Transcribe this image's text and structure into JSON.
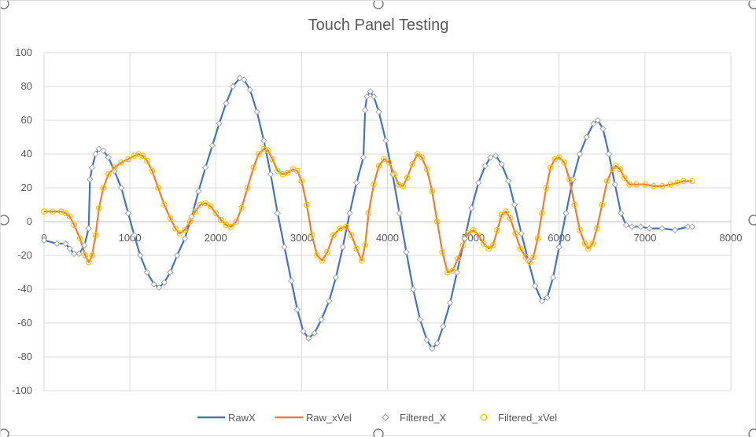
{
  "chart_data": {
    "type": "line",
    "title": "Touch Panel Testing",
    "xlabel": "",
    "ylabel": "",
    "xlim": [
      0,
      8000
    ],
    "ylim": [
      -100,
      100
    ],
    "x_ticks": [
      0,
      1000,
      2000,
      3000,
      4000,
      5000,
      6000,
      7000,
      8000
    ],
    "y_ticks": [
      100,
      80,
      60,
      40,
      20,
      0,
      -20,
      -40,
      -60,
      -80,
      -100
    ],
    "grid": true,
    "legend_position": "bottom",
    "series": [
      {
        "name": "RawX",
        "style": "line",
        "color": "#4472C4",
        "points": [
          [
            0,
            -11
          ],
          [
            150,
            -13
          ],
          [
            250,
            -13
          ],
          [
            300,
            -16
          ],
          [
            350,
            -19
          ],
          [
            410,
            -19
          ],
          [
            470,
            -14
          ],
          [
            520,
            -4
          ],
          [
            535,
            25
          ],
          [
            560,
            32
          ],
          [
            600,
            40
          ],
          [
            640,
            43
          ],
          [
            690,
            42
          ],
          [
            750,
            38
          ],
          [
            820,
            30
          ],
          [
            900,
            20
          ],
          [
            980,
            5
          ],
          [
            1050,
            -8
          ],
          [
            1120,
            -20
          ],
          [
            1200,
            -30
          ],
          [
            1280,
            -37
          ],
          [
            1340,
            -39
          ],
          [
            1400,
            -36
          ],
          [
            1470,
            -30
          ],
          [
            1550,
            -20
          ],
          [
            1640,
            -10
          ],
          [
            1720,
            3
          ],
          [
            1800,
            18
          ],
          [
            1880,
            32
          ],
          [
            1960,
            45
          ],
          [
            2040,
            58
          ],
          [
            2120,
            70
          ],
          [
            2200,
            80
          ],
          [
            2280,
            85
          ],
          [
            2330,
            84
          ],
          [
            2400,
            78
          ],
          [
            2480,
            65
          ],
          [
            2560,
            48
          ],
          [
            2640,
            28
          ],
          [
            2720,
            5
          ],
          [
            2800,
            -15
          ],
          [
            2880,
            -35
          ],
          [
            2950,
            -52
          ],
          [
            3020,
            -65
          ],
          [
            3080,
            -69
          ],
          [
            3150,
            -66
          ],
          [
            3230,
            -58
          ],
          [
            3320,
            -47
          ],
          [
            3400,
            -33
          ],
          [
            3480,
            -15
          ],
          [
            3560,
            5
          ],
          [
            3640,
            23
          ],
          [
            3720,
            38
          ],
          [
            3740,
            66
          ],
          [
            3760,
            74
          ],
          [
            3800,
            77
          ],
          [
            3840,
            74
          ],
          [
            3900,
            65
          ],
          [
            3980,
            48
          ],
          [
            4060,
            28
          ],
          [
            4140,
            5
          ],
          [
            4220,
            -18
          ],
          [
            4300,
            -40
          ],
          [
            4380,
            -58
          ],
          [
            4460,
            -70
          ],
          [
            4520,
            -75
          ],
          [
            4580,
            -72
          ],
          [
            4650,
            -62
          ],
          [
            4730,
            -48
          ],
          [
            4810,
            -30
          ],
          [
            4900,
            -10
          ],
          [
            4980,
            8
          ],
          [
            5060,
            23
          ],
          [
            5140,
            33
          ],
          [
            5200,
            38
          ],
          [
            5260,
            39
          ],
          [
            5330,
            34
          ],
          [
            5410,
            24
          ],
          [
            5480,
            10
          ],
          [
            5560,
            -7
          ],
          [
            5640,
            -23
          ],
          [
            5720,
            -38
          ],
          [
            5800,
            -47
          ],
          [
            5860,
            -45
          ],
          [
            5930,
            -33
          ],
          [
            6000,
            -15
          ],
          [
            6080,
            5
          ],
          [
            6160,
            25
          ],
          [
            6240,
            40
          ],
          [
            6320,
            50
          ],
          [
            6400,
            58
          ],
          [
            6450,
            60
          ],
          [
            6510,
            55
          ],
          [
            6580,
            40
          ],
          [
            6650,
            22
          ],
          [
            6720,
            5
          ],
          [
            6780,
            -2
          ],
          [
            6850,
            -3
          ],
          [
            6950,
            -3
          ],
          [
            7050,
            -4
          ],
          [
            7200,
            -4
          ],
          [
            7350,
            -5
          ],
          [
            7500,
            -3
          ],
          [
            7550,
            -3
          ]
        ]
      },
      {
        "name": "Raw_xVel",
        "style": "line",
        "color": "#ED7D31",
        "points": [
          [
            0,
            6
          ],
          [
            100,
            6
          ],
          [
            200,
            6
          ],
          [
            250,
            5
          ],
          [
            300,
            3
          ],
          [
            350,
            -2
          ],
          [
            420,
            -10
          ],
          [
            480,
            -20
          ],
          [
            520,
            -24
          ],
          [
            560,
            -20
          ],
          [
            600,
            -8
          ],
          [
            640,
            8
          ],
          [
            690,
            20
          ],
          [
            750,
            28
          ],
          [
            820,
            32
          ],
          [
            900,
            35
          ],
          [
            980,
            37
          ],
          [
            1050,
            39
          ],
          [
            1100,
            40
          ],
          [
            1150,
            39
          ],
          [
            1200,
            36
          ],
          [
            1260,
            30
          ],
          [
            1330,
            20
          ],
          [
            1400,
            10
          ],
          [
            1470,
            2
          ],
          [
            1530,
            -4
          ],
          [
            1580,
            -7
          ],
          [
            1640,
            -5
          ],
          [
            1700,
            0
          ],
          [
            1760,
            6
          ],
          [
            1820,
            10
          ],
          [
            1880,
            11
          ],
          [
            1940,
            9
          ],
          [
            2000,
            5
          ],
          [
            2060,
            1
          ],
          [
            2120,
            -2
          ],
          [
            2180,
            -3
          ],
          [
            2240,
            0
          ],
          [
            2300,
            8
          ],
          [
            2370,
            20
          ],
          [
            2440,
            32
          ],
          [
            2500,
            40
          ],
          [
            2560,
            43
          ],
          [
            2610,
            42
          ],
          [
            2660,
            37
          ],
          [
            2720,
            30
          ],
          [
            2780,
            28
          ],
          [
            2840,
            29
          ],
          [
            2900,
            31
          ],
          [
            2950,
            30
          ],
          [
            3000,
            24
          ],
          [
            3060,
            10
          ],
          [
            3120,
            -8
          ],
          [
            3180,
            -20
          ],
          [
            3240,
            -23
          ],
          [
            3300,
            -18
          ],
          [
            3370,
            -8
          ],
          [
            3450,
            -4
          ],
          [
            3520,
            -3
          ],
          [
            3580,
            -8
          ],
          [
            3640,
            -16
          ],
          [
            3700,
            -23
          ],
          [
            3740,
            -14
          ],
          [
            3780,
            5
          ],
          [
            3840,
            22
          ],
          [
            3900,
            33
          ],
          [
            3960,
            37
          ],
          [
            4020,
            35
          ],
          [
            4080,
            28
          ],
          [
            4130,
            22
          ],
          [
            4180,
            21
          ],
          [
            4230,
            26
          ],
          [
            4290,
            34
          ],
          [
            4350,
            40
          ],
          [
            4400,
            38
          ],
          [
            4460,
            31
          ],
          [
            4520,
            18
          ],
          [
            4580,
            0
          ],
          [
            4640,
            -18
          ],
          [
            4700,
            -30
          ],
          [
            4760,
            -29
          ],
          [
            4820,
            -22
          ],
          [
            4880,
            -14
          ],
          [
            4940,
            -7
          ],
          [
            5000,
            -5
          ],
          [
            5060,
            -8
          ],
          [
            5120,
            -13
          ],
          [
            5180,
            -16
          ],
          [
            5230,
            -14
          ],
          [
            5280,
            -5
          ],
          [
            5330,
            4
          ],
          [
            5380,
            6
          ],
          [
            5430,
            2
          ],
          [
            5490,
            -7
          ],
          [
            5550,
            -16
          ],
          [
            5610,
            -21
          ],
          [
            5660,
            -24
          ],
          [
            5700,
            -21
          ],
          [
            5750,
            -10
          ],
          [
            5800,
            5
          ],
          [
            5850,
            20
          ],
          [
            5900,
            32
          ],
          [
            5950,
            37
          ],
          [
            6000,
            38
          ],
          [
            6060,
            35
          ],
          [
            6120,
            25
          ],
          [
            6180,
            10
          ],
          [
            6240,
            -5
          ],
          [
            6300,
            -13
          ],
          [
            6340,
            -16
          ],
          [
            6390,
            -13
          ],
          [
            6440,
            -4
          ],
          [
            6500,
            10
          ],
          [
            6560,
            24
          ],
          [
            6620,
            31
          ],
          [
            6660,
            33
          ],
          [
            6710,
            31
          ],
          [
            6760,
            26
          ],
          [
            6820,
            22
          ],
          [
            6900,
            22
          ],
          [
            7000,
            22
          ],
          [
            7100,
            21
          ],
          [
            7200,
            21
          ],
          [
            7300,
            22
          ],
          [
            7380,
            23
          ],
          [
            7450,
            24
          ],
          [
            7550,
            24
          ]
        ]
      },
      {
        "name": "Filtered_X",
        "style": "marker",
        "marker": "diamond",
        "color": "#A5A5A5",
        "source": "RawX"
      },
      {
        "name": "Filtered_xVel",
        "style": "marker",
        "marker": "circle",
        "color": "#FFC000",
        "source": "Raw_xVel"
      }
    ]
  }
}
